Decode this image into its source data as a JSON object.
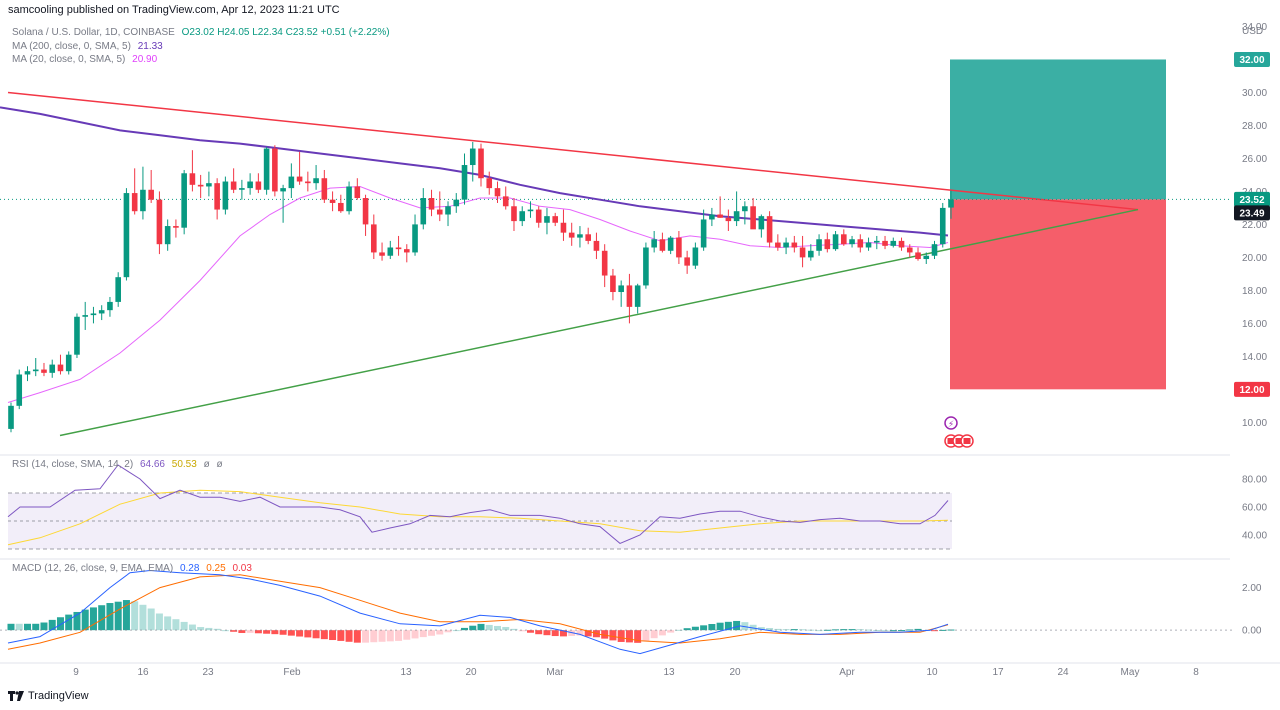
{
  "header": {
    "publisher": "samcooling published on TradingView.com, Apr 12, 2023 11:21 UTC"
  },
  "legend": {
    "symbol": "Solana / U.S. Dollar, 1D, COINBASE",
    "ohlc": "O23.02 H24.05 L22.34 C23.52 +0.51 (+2.22%)",
    "ma200_label": "MA (200, close, 0, SMA, 5)",
    "ma200_value": "21.33",
    "ma20_label": "MA (20, close, 0, SMA, 5)",
    "ma20_value": "20.90",
    "rsi_label": "RSI (14, close, SMA, 14, 2)",
    "rsi_values": [
      "64.66",
      "50.53",
      "ø",
      "ø"
    ],
    "macd_label": "MACD (12, 26, close, 9, EMA, EMA)",
    "macd_values": [
      "0.28",
      "0.25",
      "0.03"
    ]
  },
  "footer": {
    "brand": "TradingView"
  },
  "colors": {
    "up": "#089981",
    "down": "#f23645",
    "ma200": "#673ab7",
    "ma20": "#e040fb",
    "resistance": "#f23645",
    "support": "#43a047",
    "rsi": "#7e57c2",
    "rsi_ma": "#fdd835",
    "macd": "#2962ff",
    "signal": "#ff6d00",
    "tp_zone": "#26a69a",
    "sl_zone": "#f23645"
  },
  "chart_data": {
    "type": "candlestick",
    "currency_label": "USD",
    "price_ticks": [
      "34.00",
      "32.00",
      "30.00",
      "28.00",
      "26.00",
      "24.00",
      "22.00",
      "20.00",
      "18.00",
      "16.00",
      "14.00",
      "12.00",
      "10.00"
    ],
    "x_labels": [
      "9",
      "16",
      "23",
      "Feb",
      "13",
      "20",
      "Mar",
      "13",
      "20",
      "Apr",
      "10",
      "17",
      "24",
      "May",
      "8"
    ],
    "price_tags": [
      {
        "value": "32.00",
        "color": "#26a69a"
      },
      {
        "value": "23.52",
        "color": "#089981"
      },
      {
        "value": "23.49",
        "color": "#131722"
      },
      {
        "value": "12.00",
        "color": "#f23645"
      }
    ],
    "candles": [
      [
        9.6,
        11.2,
        9.4,
        11.0
      ],
      [
        11.0,
        13.2,
        10.8,
        12.9
      ],
      [
        12.9,
        13.4,
        12.5,
        13.1
      ],
      [
        13.1,
        13.9,
        12.8,
        13.2
      ],
      [
        13.2,
        13.6,
        12.8,
        13.0
      ],
      [
        13.0,
        13.8,
        12.7,
        13.5
      ],
      [
        13.5,
        14.1,
        12.9,
        13.1
      ],
      [
        13.1,
        14.3,
        12.9,
        14.1
      ],
      [
        14.1,
        16.6,
        13.9,
        16.4
      ],
      [
        16.4,
        17.3,
        15.6,
        16.5
      ],
      [
        16.5,
        17.0,
        16.0,
        16.6
      ],
      [
        16.6,
        17.1,
        16.2,
        16.8
      ],
      [
        16.8,
        17.6,
        16.4,
        17.3
      ],
      [
        17.3,
        19.1,
        17.0,
        18.8
      ],
      [
        18.8,
        24.2,
        18.6,
        23.9
      ],
      [
        23.9,
        25.4,
        22.6,
        22.8
      ],
      [
        22.8,
        25.5,
        22.3,
        24.1
      ],
      [
        24.1,
        25.3,
        23.3,
        23.5
      ],
      [
        23.5,
        24.0,
        20.2,
        20.8
      ],
      [
        20.8,
        22.3,
        20.4,
        21.9
      ],
      [
        21.9,
        22.3,
        21.2,
        21.8
      ],
      [
        21.8,
        25.3,
        21.4,
        25.1
      ],
      [
        25.1,
        26.5,
        24.0,
        24.4
      ],
      [
        24.4,
        25.0,
        23.6,
        24.3
      ],
      [
        24.3,
        25.2,
        23.7,
        24.5
      ],
      [
        24.5,
        24.8,
        22.3,
        22.9
      ],
      [
        22.9,
        24.9,
        22.6,
        24.6
      ],
      [
        24.6,
        25.4,
        23.9,
        24.1
      ],
      [
        24.1,
        24.7,
        23.5,
        24.2
      ],
      [
        24.2,
        25.1,
        23.8,
        24.6
      ],
      [
        24.6,
        25.1,
        23.9,
        24.1
      ],
      [
        24.1,
        26.7,
        23.8,
        26.6
      ],
      [
        26.6,
        26.8,
        23.7,
        24.0
      ],
      [
        24.0,
        24.4,
        22.1,
        24.2
      ],
      [
        24.2,
        25.7,
        23.6,
        24.9
      ],
      [
        24.9,
        26.4,
        24.4,
        24.6
      ],
      [
        24.6,
        25.2,
        24.0,
        24.5
      ],
      [
        24.5,
        25.6,
        24.1,
        24.8
      ],
      [
        24.8,
        25.3,
        23.3,
        23.5
      ],
      [
        23.5,
        24.0,
        22.8,
        23.3
      ],
      [
        23.3,
        23.8,
        22.7,
        22.8
      ],
      [
        22.8,
        24.6,
        22.6,
        24.3
      ],
      [
        24.3,
        24.8,
        23.5,
        23.6
      ],
      [
        23.6,
        23.8,
        21.3,
        22.0
      ],
      [
        22.0,
        22.6,
        19.9,
        20.3
      ],
      [
        20.3,
        20.9,
        19.8,
        20.1
      ],
      [
        20.1,
        21.0,
        19.9,
        20.6
      ],
      [
        20.6,
        21.3,
        20.1,
        20.5
      ],
      [
        20.5,
        20.8,
        19.7,
        20.3
      ],
      [
        20.3,
        22.6,
        20.1,
        22.0
      ],
      [
        22.0,
        24.2,
        21.7,
        23.6
      ],
      [
        23.6,
        24.1,
        22.5,
        22.9
      ],
      [
        22.9,
        24.0,
        22.2,
        22.6
      ],
      [
        22.6,
        23.4,
        21.9,
        23.1
      ],
      [
        23.1,
        23.9,
        22.7,
        23.5
      ],
      [
        23.5,
        26.3,
        23.2,
        25.6
      ],
      [
        25.6,
        27.0,
        24.6,
        26.6
      ],
      [
        26.6,
        26.9,
        24.3,
        24.8
      ],
      [
        24.8,
        25.2,
        23.8,
        24.2
      ],
      [
        24.2,
        24.6,
        23.3,
        23.7
      ],
      [
        23.7,
        24.3,
        22.9,
        23.1
      ],
      [
        23.1,
        23.6,
        21.6,
        22.2
      ],
      [
        22.2,
        23.1,
        21.9,
        22.8
      ],
      [
        22.8,
        23.4,
        22.4,
        22.9
      ],
      [
        22.9,
        23.1,
        21.8,
        22.1
      ],
      [
        22.1,
        23.0,
        21.4,
        22.5
      ],
      [
        22.5,
        22.7,
        21.9,
        22.1
      ],
      [
        22.1,
        22.9,
        21.0,
        21.5
      ],
      [
        21.5,
        22.1,
        20.7,
        21.2
      ],
      [
        21.2,
        21.9,
        20.6,
        21.4
      ],
      [
        21.4,
        21.8,
        20.8,
        21.0
      ],
      [
        21.0,
        21.5,
        19.9,
        20.4
      ],
      [
        20.4,
        20.8,
        18.2,
        18.9
      ],
      [
        18.9,
        19.3,
        17.4,
        17.9
      ],
      [
        17.9,
        18.6,
        17.0,
        18.3
      ],
      [
        18.3,
        19.0,
        16.0,
        17.0
      ],
      [
        17.0,
        18.4,
        16.6,
        18.3
      ],
      [
        18.3,
        20.9,
        18.1,
        20.6
      ],
      [
        20.6,
        21.6,
        20.3,
        21.1
      ],
      [
        21.1,
        21.5,
        20.3,
        20.4
      ],
      [
        20.4,
        21.3,
        20.2,
        21.2
      ],
      [
        21.2,
        21.6,
        19.6,
        20.0
      ],
      [
        20.0,
        20.4,
        19.0,
        19.5
      ],
      [
        19.5,
        20.9,
        19.3,
        20.6
      ],
      [
        20.6,
        22.9,
        20.4,
        22.3
      ],
      [
        22.3,
        23.0,
        21.9,
        22.6
      ],
      [
        22.6,
        23.7,
        22.4,
        22.4
      ],
      [
        22.4,
        22.9,
        21.6,
        22.2
      ],
      [
        22.2,
        24.0,
        21.9,
        22.8
      ],
      [
        22.8,
        23.4,
        22.0,
        23.1
      ],
      [
        23.1,
        23.6,
        21.8,
        21.7
      ],
      [
        21.7,
        22.6,
        21.2,
        22.5
      ],
      [
        22.5,
        22.8,
        20.6,
        20.9
      ],
      [
        20.9,
        21.4,
        20.4,
        20.6
      ],
      [
        20.6,
        21.2,
        20.2,
        20.9
      ],
      [
        20.9,
        21.3,
        20.3,
        20.6
      ],
      [
        20.6,
        21.3,
        19.4,
        20.0
      ],
      [
        20.0,
        20.8,
        19.8,
        20.4
      ],
      [
        20.4,
        21.4,
        20.1,
        21.1
      ],
      [
        21.1,
        21.5,
        20.3,
        20.5
      ],
      [
        20.5,
        21.6,
        20.4,
        21.4
      ],
      [
        21.4,
        21.7,
        20.7,
        20.8
      ],
      [
        20.8,
        21.3,
        20.6,
        21.1
      ],
      [
        21.1,
        21.4,
        20.3,
        20.6
      ],
      [
        20.6,
        21.2,
        20.4,
        20.9
      ],
      [
        20.9,
        21.3,
        20.5,
        21.0
      ],
      [
        21.0,
        21.3,
        20.5,
        20.7
      ],
      [
        20.7,
        21.2,
        20.6,
        21.0
      ],
      [
        21.0,
        21.2,
        20.4,
        20.6
      ],
      [
        20.6,
        20.8,
        20.0,
        20.3
      ],
      [
        20.3,
        20.6,
        19.8,
        19.9
      ],
      [
        19.9,
        20.3,
        19.6,
        20.1
      ],
      [
        20.1,
        21.0,
        19.9,
        20.8
      ],
      [
        20.8,
        23.3,
        20.6,
        23.0
      ],
      [
        23.02,
        24.05,
        22.34,
        23.52
      ]
    ],
    "ma200": [
      [
        0,
        29.1
      ],
      [
        40,
        28.7
      ],
      [
        80,
        28.2
      ],
      [
        120,
        27.7
      ],
      [
        160,
        27.4
      ],
      [
        200,
        27.1
      ],
      [
        240,
        26.9
      ],
      [
        280,
        26.6
      ],
      [
        320,
        26.3
      ],
      [
        360,
        26.0
      ],
      [
        400,
        25.7
      ],
      [
        440,
        25.4
      ],
      [
        480,
        25.0
      ],
      [
        520,
        24.4
      ],
      [
        560,
        23.9
      ],
      [
        600,
        23.5
      ],
      [
        640,
        23.1
      ],
      [
        680,
        22.8
      ],
      [
        720,
        22.5
      ],
      [
        760,
        22.3
      ],
      [
        800,
        22.1
      ],
      [
        840,
        21.9
      ],
      [
        880,
        21.7
      ],
      [
        920,
        21.5
      ],
      [
        948,
        21.33
      ]
    ],
    "ma20": [
      [
        8,
        11.2
      ],
      [
        40,
        11.8
      ],
      [
        80,
        12.6
      ],
      [
        120,
        14.2
      ],
      [
        160,
        16.2
      ],
      [
        200,
        18.6
      ],
      [
        240,
        21.3
      ],
      [
        270,
        22.6
      ],
      [
        300,
        23.6
      ],
      [
        330,
        24.2
      ],
      [
        360,
        24.3
      ],
      [
        390,
        23.6
      ],
      [
        420,
        23.0
      ],
      [
        450,
        23.1
      ],
      [
        480,
        23.6
      ],
      [
        510,
        23.6
      ],
      [
        540,
        23.1
      ],
      [
        570,
        22.9
      ],
      [
        600,
        22.3
      ],
      [
        630,
        21.6
      ],
      [
        660,
        21.0
      ],
      [
        690,
        21.3
      ],
      [
        720,
        21.1
      ],
      [
        750,
        20.7
      ],
      [
        780,
        20.6
      ],
      [
        810,
        20.7
      ],
      [
        840,
        20.8
      ],
      [
        870,
        20.9
      ],
      [
        900,
        20.7
      ],
      [
        930,
        20.6
      ],
      [
        948,
        20.9
      ]
    ],
    "resistance_line": [
      [
        8,
        30.0
      ],
      [
        1138,
        22.9
      ]
    ],
    "support_line": [
      [
        60,
        9.2
      ],
      [
        1138,
        22.9
      ]
    ],
    "long_position": {
      "entry": 23.52,
      "target": 32.0,
      "stop": 12.0
    },
    "rsi": [
      [
        8,
        53
      ],
      [
        20,
        60
      ],
      [
        50,
        60
      ],
      [
        75,
        72
      ],
      [
        100,
        73
      ],
      [
        118,
        90
      ],
      [
        140,
        80
      ],
      [
        160,
        66
      ],
      [
        180,
        72
      ],
      [
        200,
        67
      ],
      [
        220,
        67
      ],
      [
        240,
        64
      ],
      [
        260,
        67
      ],
      [
        280,
        60
      ],
      [
        300,
        60
      ],
      [
        320,
        60
      ],
      [
        340,
        58
      ],
      [
        360,
        53
      ],
      [
        372,
        42
      ],
      [
        390,
        45
      ],
      [
        410,
        48
      ],
      [
        430,
        54
      ],
      [
        450,
        53
      ],
      [
        470,
        56
      ],
      [
        490,
        58
      ],
      [
        510,
        54
      ],
      [
        540,
        54
      ],
      [
        560,
        52
      ],
      [
        580,
        48
      ],
      [
        600,
        46
      ],
      [
        620,
        34
      ],
      [
        640,
        40
      ],
      [
        660,
        53
      ],
      [
        680,
        52
      ],
      [
        700,
        55
      ],
      [
        720,
        57
      ],
      [
        740,
        57
      ],
      [
        760,
        53
      ],
      [
        780,
        50
      ],
      [
        800,
        49
      ],
      [
        820,
        51
      ],
      [
        840,
        52
      ],
      [
        860,
        50
      ],
      [
        880,
        50
      ],
      [
        900,
        48
      ],
      [
        920,
        48
      ],
      [
        935,
        54
      ],
      [
        948,
        64.66
      ]
    ],
    "rsi_ma": [
      [
        8,
        33
      ],
      [
        40,
        38
      ],
      [
        80,
        48
      ],
      [
        120,
        62
      ],
      [
        160,
        70
      ],
      [
        200,
        72
      ],
      [
        240,
        71
      ],
      [
        280,
        67
      ],
      [
        320,
        63
      ],
      [
        360,
        60
      ],
      [
        400,
        55
      ],
      [
        440,
        53
      ],
      [
        480,
        53
      ],
      [
        520,
        52
      ],
      [
        560,
        50
      ],
      [
        600,
        48
      ],
      [
        640,
        43
      ],
      [
        680,
        42
      ],
      [
        720,
        45
      ],
      [
        760,
        48
      ],
      [
        800,
        50
      ],
      [
        840,
        50
      ],
      [
        880,
        50
      ],
      [
        920,
        50
      ],
      [
        948,
        50.53
      ]
    ],
    "rsi_levels": [
      70,
      50,
      30
    ],
    "rsi_ticks": [
      "80.00",
      "60.00",
      "40.00"
    ],
    "macd": [
      [
        8,
        -0.6
      ],
      [
        40,
        -0.3
      ],
      [
        80,
        0.8
      ],
      [
        110,
        2.0
      ],
      [
        130,
        2.7
      ],
      [
        150,
        2.8
      ],
      [
        180,
        2.7
      ],
      [
        220,
        2.6
      ],
      [
        250,
        2.4
      ],
      [
        280,
        2.1
      ],
      [
        320,
        1.6
      ],
      [
        360,
        0.8
      ],
      [
        400,
        0.3
      ],
      [
        440,
        0.2
      ],
      [
        480,
        0.7
      ],
      [
        510,
        0.6
      ],
      [
        540,
        0.2
      ],
      [
        580,
        -0.2
      ],
      [
        620,
        -0.9
      ],
      [
        640,
        -1.1
      ],
      [
        670,
        -0.7
      ],
      [
        700,
        -0.3
      ],
      [
        740,
        0.2
      ],
      [
        780,
        -0.1
      ],
      [
        820,
        -0.2
      ],
      [
        860,
        -0.1
      ],
      [
        900,
        -0.1
      ],
      [
        930,
        0.0
      ],
      [
        948,
        0.28
      ]
    ],
    "signal": [
      [
        8,
        -0.9
      ],
      [
        40,
        -0.6
      ],
      [
        80,
        -0.1
      ],
      [
        120,
        1.0
      ],
      [
        160,
        2.0
      ],
      [
        200,
        2.5
      ],
      [
        240,
        2.6
      ],
      [
        280,
        2.3
      ],
      [
        320,
        2.0
      ],
      [
        360,
        1.4
      ],
      [
        400,
        0.8
      ],
      [
        440,
        0.4
      ],
      [
        480,
        0.4
      ],
      [
        520,
        0.5
      ],
      [
        560,
        0.3
      ],
      [
        600,
        -0.2
      ],
      [
        640,
        -0.5
      ],
      [
        680,
        -0.6
      ],
      [
        720,
        -0.4
      ],
      [
        760,
        -0.1
      ],
      [
        800,
        -0.2
      ],
      [
        840,
        -0.2
      ],
      [
        880,
        -0.1
      ],
      [
        920,
        -0.1
      ],
      [
        948,
        0.25
      ]
    ],
    "macd_ticks": [
      "2.00",
      "0.00"
    ],
    "macd_ylim": [
      -1.4,
      3.2
    ],
    "rsi_ylim": [
      25,
      95
    ],
    "price_ylim": [
      8.2,
      35.0
    ]
  }
}
